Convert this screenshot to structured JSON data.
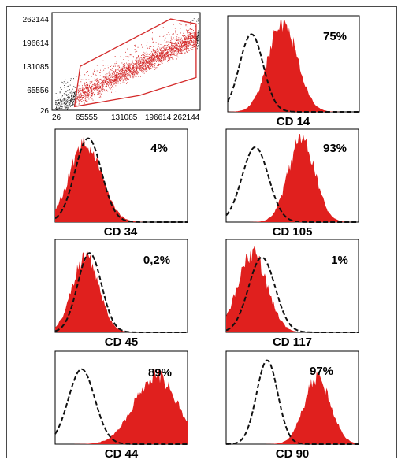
{
  "chart_data": [
    {
      "type": "scatter",
      "x": [
        26,
        65555,
        131085,
        196614,
        262144
      ],
      "y": [
        26,
        65556,
        131085,
        196614,
        262144
      ],
      "xticks": [
        "26",
        "65555",
        "131085",
        "196614",
        "262144"
      ],
      "yticks": [
        "26",
        "65556",
        "131085",
        "196614",
        "262144"
      ],
      "xlim": [
        26,
        262144
      ],
      "ylim": [
        26,
        262144
      ],
      "gate_polygon": [
        [
          40000,
          10000
        ],
        [
          155000,
          40000
        ],
        [
          255000,
          88000
        ],
        [
          255000,
          232000
        ],
        [
          210000,
          245000
        ],
        [
          50000,
          118000
        ]
      ],
      "gate_color": "#d42a2a",
      "point_color": "#222222"
    },
    {
      "type": "area",
      "marker": "CD 14",
      "percent": "75%",
      "control_peak": 0.18,
      "control_width": 0.09,
      "control_height": 0.85,
      "stained_peak": 0.42,
      "stained_width": 0.11,
      "stained_height": 0.98
    },
    {
      "type": "area",
      "marker": "CD 34",
      "percent": "4%",
      "control_peak": 0.25,
      "control_width": 0.1,
      "control_height": 0.95,
      "stained_peak": 0.23,
      "stained_width": 0.12,
      "stained_height": 0.9
    },
    {
      "type": "area",
      "marker": "CD 105",
      "percent": "93%",
      "control_peak": 0.22,
      "control_width": 0.1,
      "control_height": 0.85,
      "stained_peak": 0.57,
      "stained_width": 0.1,
      "stained_height": 0.95
    },
    {
      "type": "area",
      "marker": "CD 45",
      "percent": "0,2%",
      "control_peak": 0.26,
      "control_width": 0.09,
      "control_height": 0.9,
      "stained_peak": 0.23,
      "stained_width": 0.1,
      "stained_height": 0.85
    },
    {
      "type": "area",
      "marker": "CD 117",
      "percent": "1%",
      "control_peak": 0.27,
      "control_width": 0.1,
      "control_height": 0.85,
      "stained_peak": 0.2,
      "stained_width": 0.11,
      "stained_height": 0.9
    },
    {
      "type": "area",
      "marker": "CD 44",
      "percent": "89%",
      "control_peak": 0.2,
      "control_width": 0.1,
      "control_height": 0.85,
      "stained_peak": 0.76,
      "stained_width": 0.16,
      "stained_height": 0.78
    },
    {
      "type": "area",
      "marker": "CD 90",
      "percent": "97%",
      "control_peak": 0.31,
      "control_width": 0.08,
      "control_height": 0.95,
      "stained_peak": 0.69,
      "stained_width": 0.1,
      "stained_height": 0.75
    }
  ]
}
